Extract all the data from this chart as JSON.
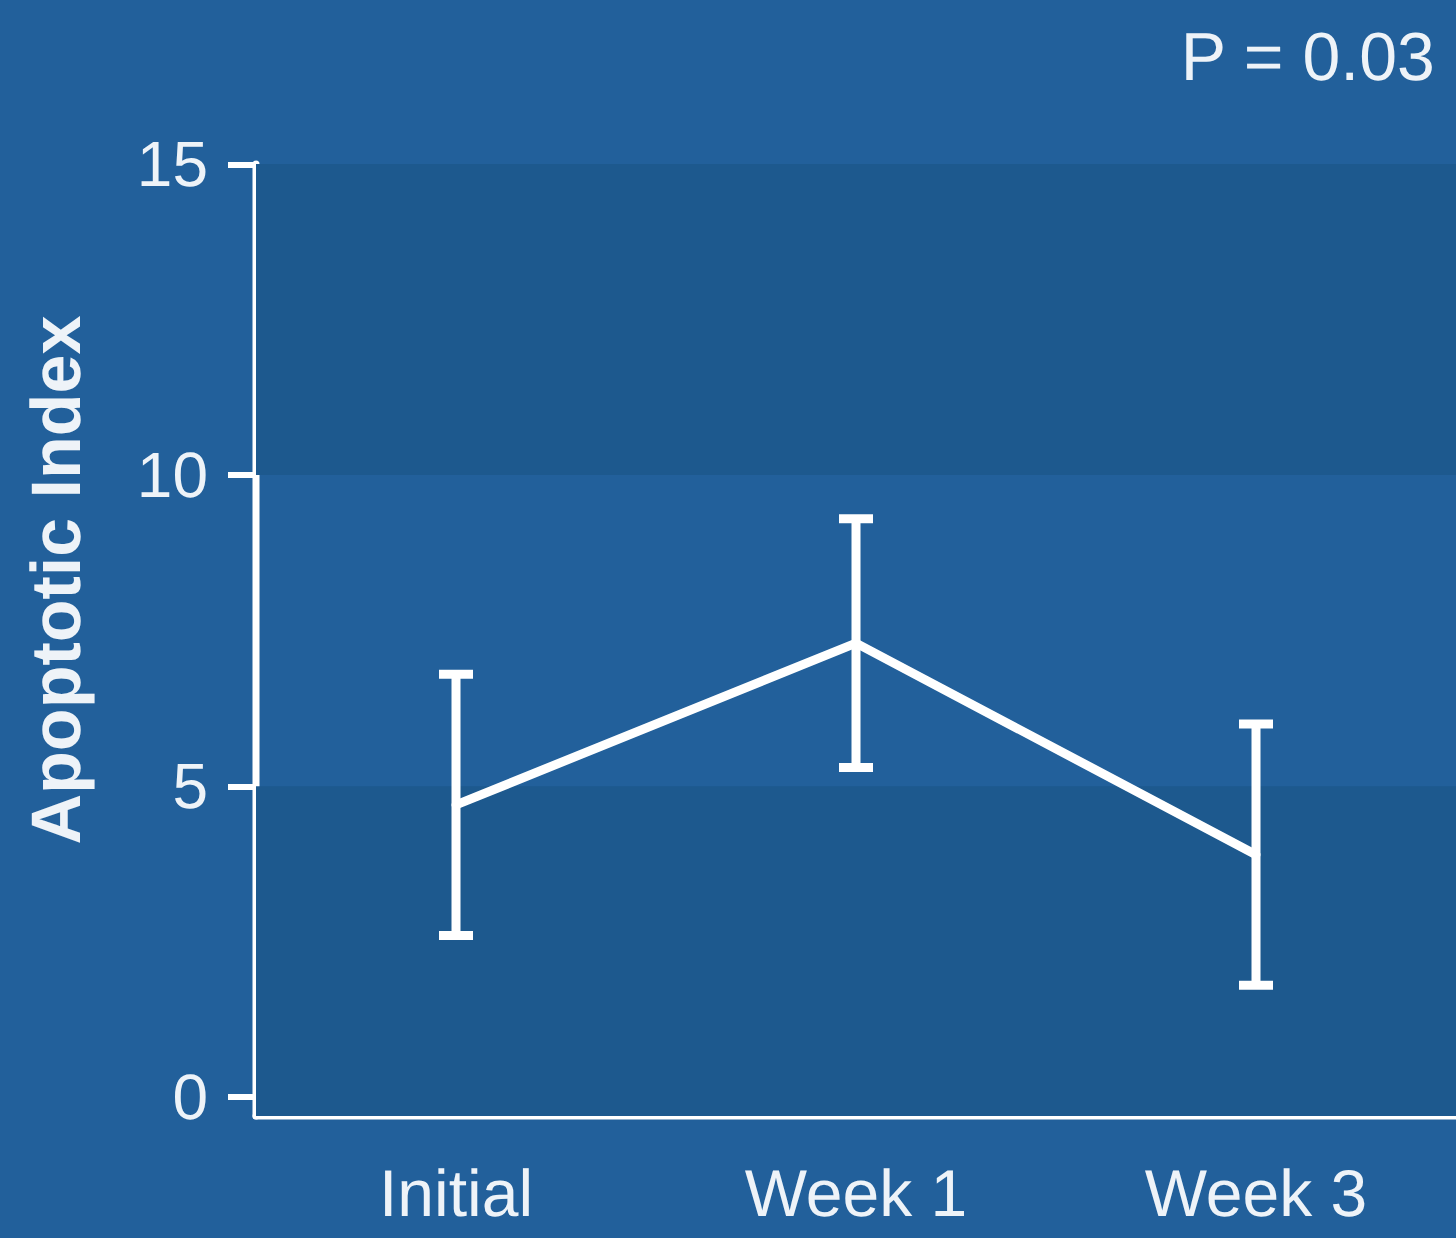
{
  "chart_data": {
    "type": "line",
    "ylabel": "Apoptotic Index",
    "annotations": [
      "P = 0.03"
    ],
    "categories": [
      "Initial",
      "Week 1",
      "Week 3"
    ],
    "ylim": [
      -0.3,
      15
    ],
    "yticks": [
      0,
      5,
      10,
      15
    ],
    "series": [
      {
        "color": "#ffffff",
        "values": [
          4.7,
          7.3,
          3.9
        ],
        "errors": [
          2.1,
          2.0,
          2.1
        ]
      }
    ],
    "marker": "none",
    "line_style": "solid",
    "bands": [
      {
        "axis": "y",
        "from": -0.3,
        "to": 5,
        "color": "#1d598e"
      },
      {
        "axis": "y",
        "from": 10,
        "to": 15,
        "color": "#1d598e"
      }
    ]
  }
}
